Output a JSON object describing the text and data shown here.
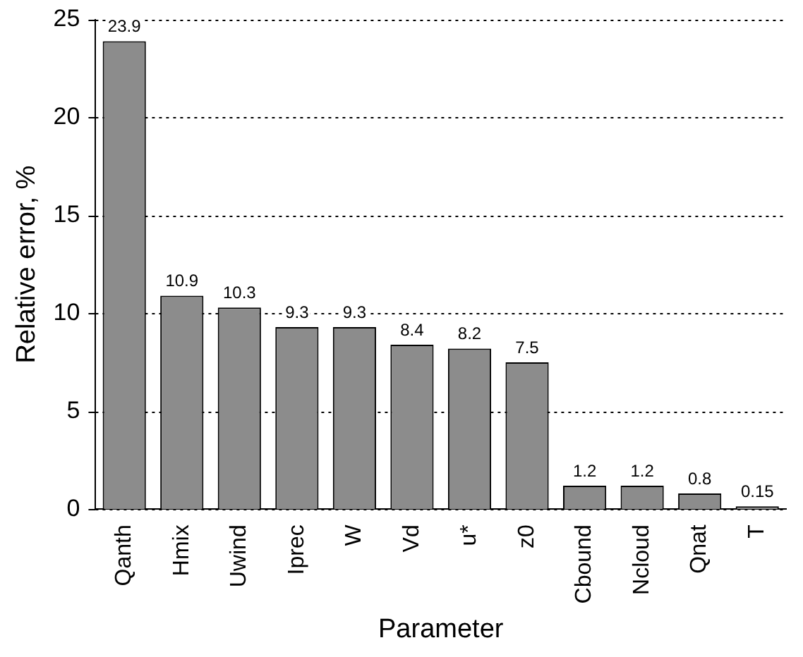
{
  "chart_data": {
    "type": "bar",
    "xlabel": "Parameter",
    "ylabel": "Relative error, %",
    "categories": [
      "Qanth",
      "Hmix",
      "Uwind",
      "Iprec",
      "W",
      "Vd",
      "u*",
      "z0",
      "Cbound",
      "Ncloud",
      "Qnat",
      "T"
    ],
    "values": [
      23.9,
      10.9,
      10.3,
      9.3,
      9.3,
      8.4,
      8.2,
      7.5,
      1.2,
      1.2,
      0.8,
      0.15
    ],
    "color": "#8c8c8c",
    "ylim": [
      0,
      25
    ],
    "yticks": [
      0,
      5,
      10,
      15,
      20,
      25
    ],
    "grid": "y",
    "data_labels": true,
    "legend": false
  }
}
